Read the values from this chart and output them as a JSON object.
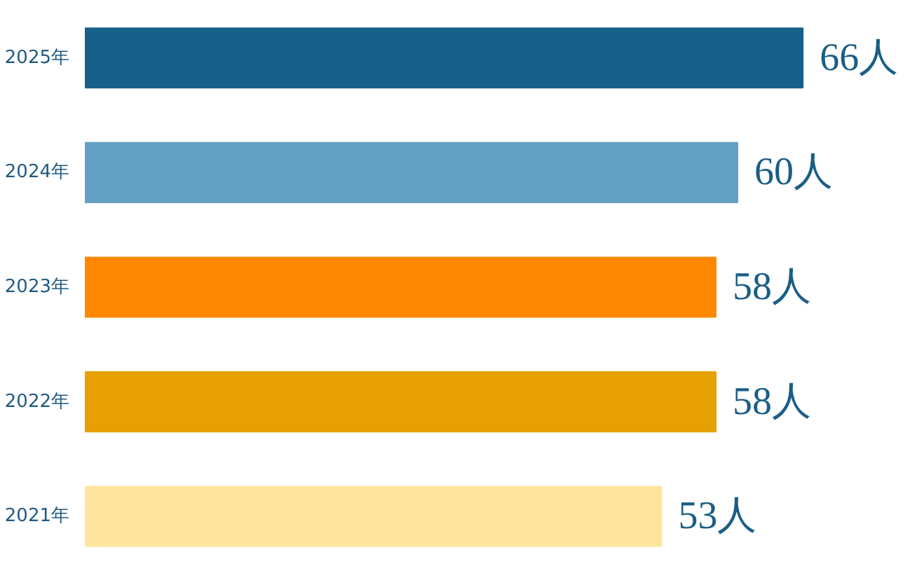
{
  "chart_data": {
    "type": "bar",
    "orientation": "horizontal",
    "categories": [
      "2025年",
      "2024年",
      "2023年",
      "2022年",
      "2021年"
    ],
    "values": [
      66,
      60,
      58,
      58,
      53
    ],
    "colors": [
      "#17608a",
      "#64a0c4",
      "#ff8800",
      "#e6a000",
      "#ffe49c"
    ],
    "value_labels": [
      "66人",
      "60人",
      "58人",
      "58人",
      "53人"
    ],
    "grid": false
  }
}
